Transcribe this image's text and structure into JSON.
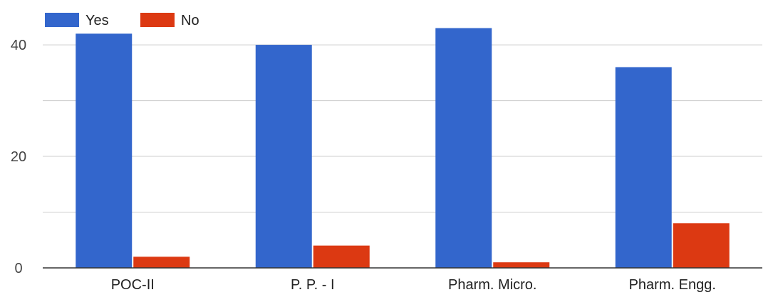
{
  "chart_data": {
    "type": "bar",
    "categories": [
      "POC-II",
      "P. P. - I",
      "Pharm. Micro.",
      "Pharm. Engg."
    ],
    "series": [
      {
        "name": "Yes",
        "color": "#3366cc",
        "values": [
          42,
          40,
          43,
          36
        ]
      },
      {
        "name": "No",
        "color": "#dc3912",
        "values": [
          2,
          4,
          1,
          8
        ]
      }
    ],
    "title": "",
    "xlabel": "",
    "ylabel": "",
    "ylim": [
      0,
      46
    ],
    "yticks": [
      0,
      20,
      40
    ],
    "grid": true,
    "legend": "top-left"
  }
}
